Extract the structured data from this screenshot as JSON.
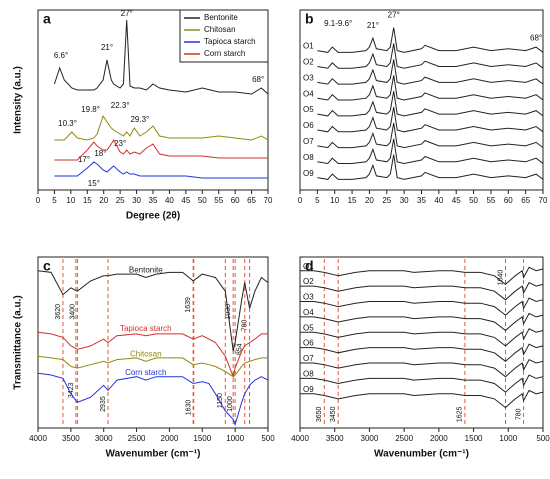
{
  "chart_data": [
    {
      "type": "line",
      "panel": "a",
      "xlabel": "Degree (2θ)",
      "ylabel": "Intensity (a.u.)",
      "xlim": [
        0,
        70
      ],
      "xticks": [
        0,
        5,
        10,
        15,
        20,
        25,
        30,
        35,
        40,
        45,
        50,
        55,
        60,
        65,
        70
      ],
      "ylim": [
        15,
        105
      ],
      "legend": "upper right",
      "x": [
        5,
        6.6,
        8,
        10.3,
        12,
        15,
        17,
        18,
        19.8,
        21,
        22.3,
        23,
        25,
        26,
        27,
        28,
        29.3,
        31,
        33,
        35,
        37,
        40,
        45,
        50,
        55,
        60,
        65,
        68,
        70
      ],
      "series": [
        {
          "name": "Bentonite",
          "color": "#222222",
          "values": [
            68,
            76,
            70,
            66,
            65,
            65,
            65,
            66,
            70,
            80,
            70,
            68,
            66,
            68,
            100,
            67,
            66,
            66,
            65,
            68,
            66,
            65,
            64,
            66,
            64,
            64,
            63,
            66,
            63
          ]
        },
        {
          "name": "Chitosan",
          "color": "#8f8a10",
          "values": [
            40,
            40,
            40,
            44,
            41,
            40,
            41,
            43,
            52,
            49,
            46,
            45,
            43,
            42,
            44,
            42,
            46,
            42,
            44,
            47,
            42,
            41,
            41,
            41,
            42,
            41,
            40,
            42,
            40
          ]
        },
        {
          "name": "Tapioca starch",
          "color": "#2233dd",
          "values": [
            22,
            22,
            22,
            22,
            22,
            26,
            29,
            28,
            25,
            24,
            26,
            27,
            24,
            23,
            24,
            23,
            23,
            22,
            22,
            22,
            22,
            22,
            22,
            21,
            21,
            21,
            21,
            21,
            21
          ]
        },
        {
          "name": "Corn starch",
          "color": "#d0302a",
          "values": [
            30,
            30,
            30,
            30,
            30,
            35,
            39,
            37,
            35,
            35,
            38,
            40,
            34,
            33,
            35,
            33,
            34,
            33,
            36,
            38,
            33,
            32,
            32,
            32,
            31,
            31,
            31,
            31,
            31
          ]
        }
      ],
      "annotations": [
        {
          "label": "6.6°",
          "x": 7,
          "y": 82
        },
        {
          "label": "21°",
          "x": 21,
          "y": 86
        },
        {
          "label": "27°",
          "x": 27,
          "y": 103
        },
        {
          "label": "22.3°",
          "x": 25,
          "y": 57
        },
        {
          "label": "10.3°",
          "x": 9,
          "y": 48
        },
        {
          "label": "19.8°",
          "x": 16,
          "y": 55
        },
        {
          "label": "29.3°",
          "x": 31,
          "y": 50
        },
        {
          "label": "23°",
          "x": 25,
          "y": 38
        },
        {
          "label": "17°",
          "x": 14,
          "y": 30
        },
        {
          "label": "18°",
          "x": 19,
          "y": 33
        },
        {
          "label": "15°",
          "x": 17,
          "y": 18
        },
        {
          "label": "68°",
          "x": 67,
          "y": 70
        }
      ]
    },
    {
      "type": "line",
      "panel": "b",
      "xlim": [
        0,
        70
      ],
      "xticks": [
        0,
        5,
        10,
        15,
        20,
        25,
        30,
        35,
        40,
        45,
        50,
        55,
        60,
        65,
        70
      ],
      "ylim": [
        10,
        112
      ],
      "series_labels": "left",
      "x": [
        5,
        8,
        9.3,
        11,
        15,
        19,
        20,
        21,
        22,
        25,
        26,
        27,
        28,
        30,
        35,
        36,
        40,
        45,
        50,
        55,
        60,
        65,
        68,
        70
      ],
      "series": [
        {
          "name": "O1",
          "color": "#222222",
          "values": [
            89,
            88,
            91,
            88,
            88,
            89,
            91,
            96,
            90,
            89,
            91,
            102,
            89,
            88,
            90,
            92,
            89,
            89,
            91,
            89,
            90,
            89,
            91,
            88
          ]
        },
        {
          "name": "O2",
          "color": "#222222",
          "values": [
            80,
            79,
            82,
            79,
            79,
            80,
            82,
            87,
            81,
            80,
            82,
            93,
            80,
            79,
            81,
            83,
            80,
            80,
            82,
            80,
            81,
            80,
            82,
            79
          ]
        },
        {
          "name": "O3",
          "color": "#222222",
          "values": [
            71,
            70,
            73,
            70,
            70,
            71,
            73,
            78,
            72,
            71,
            73,
            84,
            71,
            70,
            72,
            74,
            71,
            71,
            73,
            71,
            72,
            71,
            73,
            70
          ]
        },
        {
          "name": "O4",
          "color": "#222222",
          "values": [
            62,
            61,
            64,
            61,
            61,
            62,
            64,
            69,
            63,
            62,
            64,
            75,
            62,
            61,
            63,
            65,
            62,
            62,
            64,
            62,
            63,
            62,
            64,
            61
          ]
        },
        {
          "name": "O5",
          "color": "#222222",
          "values": [
            53,
            52,
            55,
            52,
            52,
            53,
            55,
            60,
            54,
            53,
            55,
            66,
            53,
            52,
            54,
            56,
            53,
            53,
            55,
            53,
            54,
            53,
            55,
            52
          ]
        },
        {
          "name": "O6",
          "color": "#222222",
          "values": [
            44,
            43,
            46,
            43,
            43,
            44,
            46,
            51,
            45,
            44,
            46,
            57,
            44,
            43,
            45,
            47,
            44,
            44,
            46,
            44,
            45,
            44,
            46,
            43
          ]
        },
        {
          "name": "O7",
          "color": "#222222",
          "values": [
            35,
            34,
            37,
            34,
            34,
            35,
            37,
            42,
            36,
            35,
            37,
            48,
            35,
            34,
            36,
            38,
            35,
            35,
            37,
            35,
            36,
            35,
            37,
            34
          ]
        },
        {
          "name": "O8",
          "color": "#222222",
          "values": [
            26,
            25,
            28,
            25,
            25,
            26,
            28,
            33,
            27,
            26,
            28,
            39,
            26,
            25,
            27,
            29,
            26,
            26,
            28,
            26,
            27,
            26,
            28,
            25
          ]
        },
        {
          "name": "O9",
          "color": "#222222",
          "values": [
            17,
            16,
            19,
            16,
            16,
            17,
            19,
            24,
            18,
            17,
            19,
            30,
            17,
            16,
            18,
            20,
            17,
            17,
            19,
            17,
            18,
            17,
            19,
            16
          ]
        }
      ],
      "annotations": [
        {
          "label": "9.1-9.6°",
          "x": 11,
          "y": 104
        },
        {
          "label": "21°",
          "x": 21,
          "y": 103
        },
        {
          "label": "27°",
          "x": 27,
          "y": 109
        },
        {
          "label": "68°",
          "x": 68,
          "y": 96
        }
      ]
    },
    {
      "type": "line",
      "panel": "c",
      "xlabel": "Wavenumber (cm⁻¹)",
      "ylabel": "Transmittance (a.u.)",
      "xlim": [
        4000,
        500
      ],
      "xticks": [
        4000,
        3500,
        3000,
        2500,
        2000,
        1500,
        1000,
        500
      ],
      "ylim": [
        0,
        100
      ],
      "series_labels": "inline",
      "vertical_labels": true,
      "x": [
        4000,
        3800,
        3620,
        3500,
        3400,
        3200,
        3000,
        2935,
        2800,
        2500,
        2360,
        2200,
        2000,
        1800,
        1639,
        1500,
        1400,
        1300,
        1150,
        1030,
        1000,
        900,
        854,
        780,
        700,
        600,
        500
      ],
      "series": [
        {
          "name": "Bentonite",
          "color": "#222222",
          "values": [
            92,
            91,
            78,
            82,
            80,
            86,
            89,
            89,
            90,
            90,
            88,
            90,
            91,
            91,
            86,
            90,
            89,
            88,
            80,
            45,
            50,
            75,
            85,
            70,
            80,
            88,
            85
          ]
        },
        {
          "name": "Tapioca starch",
          "color": "#d0302a",
          "values": [
            56,
            55,
            53,
            48,
            46,
            48,
            52,
            50,
            54,
            55,
            54,
            55,
            55,
            55,
            52,
            54,
            52,
            50,
            42,
            30,
            35,
            45,
            48,
            50,
            52,
            55,
            55
          ]
        },
        {
          "name": "Chitosan",
          "color": "#8f8a10",
          "values": [
            42,
            41,
            40,
            36,
            35,
            37,
            39,
            38,
            40,
            41,
            39,
            41,
            41,
            41,
            37,
            38,
            37,
            36,
            33,
            30,
            31,
            36,
            38,
            39,
            40,
            41,
            41
          ]
        },
        {
          "name": "Corn starch",
          "color": "#2233dd",
          "values": [
            32,
            31,
            29,
            20,
            15,
            18,
            25,
            22,
            28,
            30,
            28,
            30,
            30,
            30,
            26,
            27,
            26,
            20,
            10,
            5,
            2,
            15,
            20,
            25,
            28,
            30,
            28
          ]
        }
      ],
      "annotations": [
        {
          "label": "3620",
          "x": 3620,
          "y": 68
        },
        {
          "label": "3400",
          "x": 3400,
          "y": 68
        },
        {
          "label": "1639",
          "x": 1639,
          "y": 72
        },
        {
          "label": "1030",
          "x": 1030,
          "y": 68
        },
        {
          "label": "780",
          "x": 780,
          "y": 60
        },
        {
          "label": "3423",
          "x": 3423,
          "y": 22
        },
        {
          "label": "2935",
          "x": 2935,
          "y": 14
        },
        {
          "label": "1630",
          "x": 1630,
          "y": 12
        },
        {
          "label": "1150",
          "x": 1150,
          "y": 16
        },
        {
          "label": "1000",
          "x": 1000,
          "y": 14
        },
        {
          "label": "854",
          "x": 854,
          "y": 46
        }
      ]
    },
    {
      "type": "line",
      "panel": "d",
      "xlabel": "Wavenumber (cm⁻¹)",
      "xlim": [
        4000,
        500
      ],
      "xticks": [
        4000,
        3500,
        3000,
        2500,
        2000,
        1500,
        1000,
        500
      ],
      "ylim": [
        0,
        100
      ],
      "series_labels": "left",
      "vertical_labels": true,
      "x": [
        4000,
        3800,
        3650,
        3450,
        3200,
        3000,
        2500,
        2360,
        2000,
        1800,
        1625,
        1400,
        1200,
        1040,
        900,
        800,
        780,
        700,
        600,
        500
      ],
      "series": [
        {
          "name": "O1",
          "color": "#222222",
          "values": [
            92,
            92,
            91,
            89,
            91,
            92,
            92,
            91,
            92,
            92,
            91,
            91,
            89,
            84,
            89,
            92,
            88,
            94,
            92,
            93
          ]
        },
        {
          "name": "O2",
          "color": "#222222",
          "values": [
            83,
            83,
            82,
            80,
            82,
            83,
            83,
            82,
            83,
            83,
            82,
            82,
            80,
            75,
            80,
            83,
            79,
            85,
            83,
            84
          ]
        },
        {
          "name": "O3",
          "color": "#222222",
          "values": [
            74,
            74,
            73,
            71,
            73,
            74,
            74,
            73,
            74,
            74,
            73,
            73,
            71,
            66,
            71,
            74,
            70,
            76,
            74,
            75
          ]
        },
        {
          "name": "O4",
          "color": "#222222",
          "values": [
            65,
            65,
            64,
            62,
            64,
            65,
            65,
            64,
            65,
            65,
            64,
            64,
            62,
            57,
            62,
            65,
            61,
            67,
            65,
            66
          ]
        },
        {
          "name": "O5",
          "color": "#222222",
          "values": [
            56,
            56,
            55,
            53,
            55,
            56,
            56,
            55,
            56,
            56,
            55,
            55,
            53,
            48,
            53,
            56,
            52,
            58,
            56,
            57
          ]
        },
        {
          "name": "O6",
          "color": "#222222",
          "values": [
            47,
            47,
            46,
            44,
            46,
            47,
            47,
            46,
            47,
            47,
            46,
            46,
            44,
            39,
            44,
            47,
            43,
            49,
            47,
            48
          ]
        },
        {
          "name": "O7",
          "color": "#222222",
          "values": [
            38,
            38,
            37,
            35,
            37,
            38,
            38,
            37,
            38,
            38,
            37,
            37,
            35,
            30,
            35,
            38,
            34,
            40,
            38,
            39
          ]
        },
        {
          "name": "O8",
          "color": "#222222",
          "values": [
            29,
            29,
            28,
            26,
            28,
            29,
            29,
            28,
            29,
            29,
            28,
            28,
            26,
            21,
            26,
            29,
            25,
            31,
            29,
            30
          ]
        },
        {
          "name": "O9",
          "color": "#222222",
          "values": [
            20,
            20,
            19,
            17,
            19,
            20,
            20,
            19,
            20,
            20,
            19,
            19,
            17,
            12,
            17,
            20,
            16,
            22,
            20,
            21
          ]
        }
      ],
      "annotations": [
        {
          "label": "3650",
          "x": 3650,
          "y": 8
        },
        {
          "label": "3450",
          "x": 3450,
          "y": 8
        },
        {
          "label": "1625",
          "x": 1625,
          "y": 8
        },
        {
          "label": "1040",
          "x": 1040,
          "y": 88
        },
        {
          "label": "780",
          "x": 780,
          "y": 8
        }
      ]
    }
  ]
}
